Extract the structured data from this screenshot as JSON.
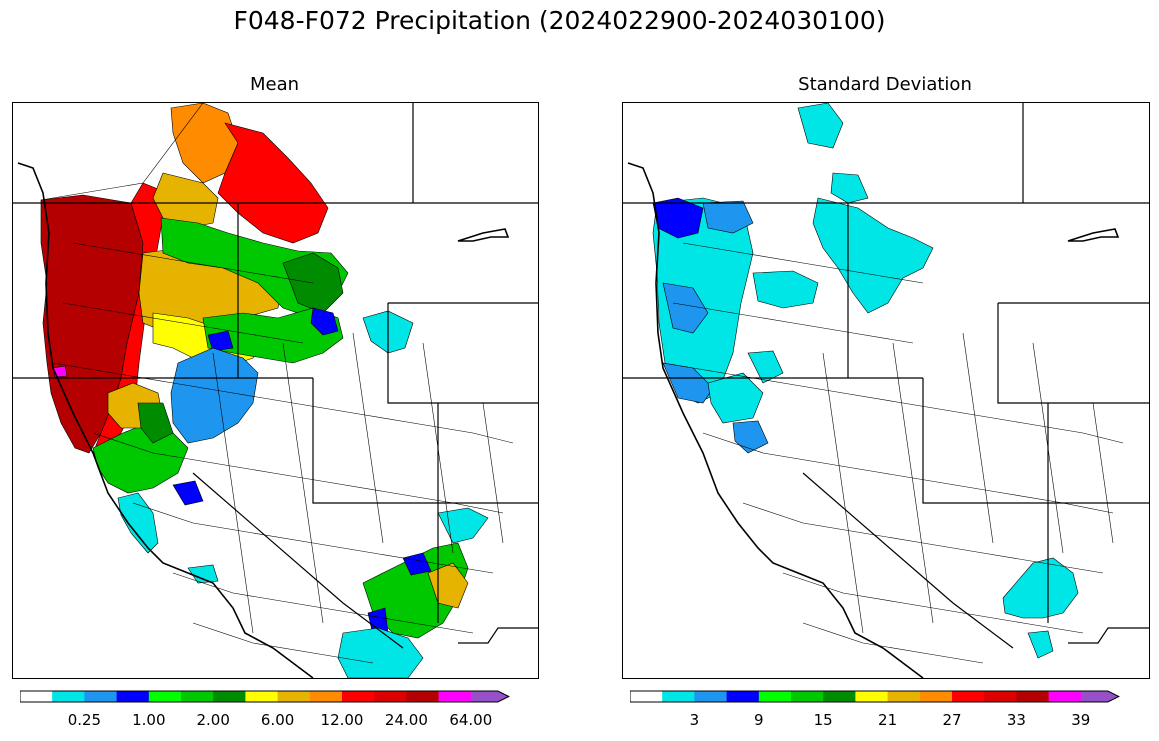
{
  "title": "F048-F072 Precipitation (2024022900-2024030100)",
  "panels": [
    {
      "title": "Mean",
      "colorbar_ticks": [
        "0.25",
        "1.00",
        "2.00",
        "6.00",
        "12.00",
        "24.00",
        "64.00"
      ]
    },
    {
      "title": "Standard Deviation",
      "colorbar_ticks": [
        "3",
        "9",
        "15",
        "21",
        "27",
        "33",
        "39"
      ]
    }
  ],
  "colorbar_colors": [
    "#ffffff",
    "#00e5e5",
    "#1e96f0",
    "#0000ff",
    "#00ff00",
    "#00c800",
    "#008c00",
    "#ffff00",
    "#e6b400",
    "#ff8c00",
    "#ff0000",
    "#dc0000",
    "#b40000",
    "#ff00ff",
    "#9650c8"
  ],
  "colors": {
    "mean_regions": {
      "coast_heavy": "#b40000",
      "coast_red": "#ff0000",
      "orange": "#ff8c00",
      "gold": "#e6b400",
      "yellow": "#ffff00",
      "green_dark": "#008c00",
      "green": "#00c800",
      "green_light": "#00ff00",
      "blue": "#0000ff",
      "mid_blue": "#1e96f0",
      "cyan": "#00e5e5",
      "magenta": "#ff00ff"
    },
    "std_regions": {
      "cyan": "#00e5e5",
      "mid_blue": "#1e96f0",
      "blue": "#0000ff"
    }
  }
}
